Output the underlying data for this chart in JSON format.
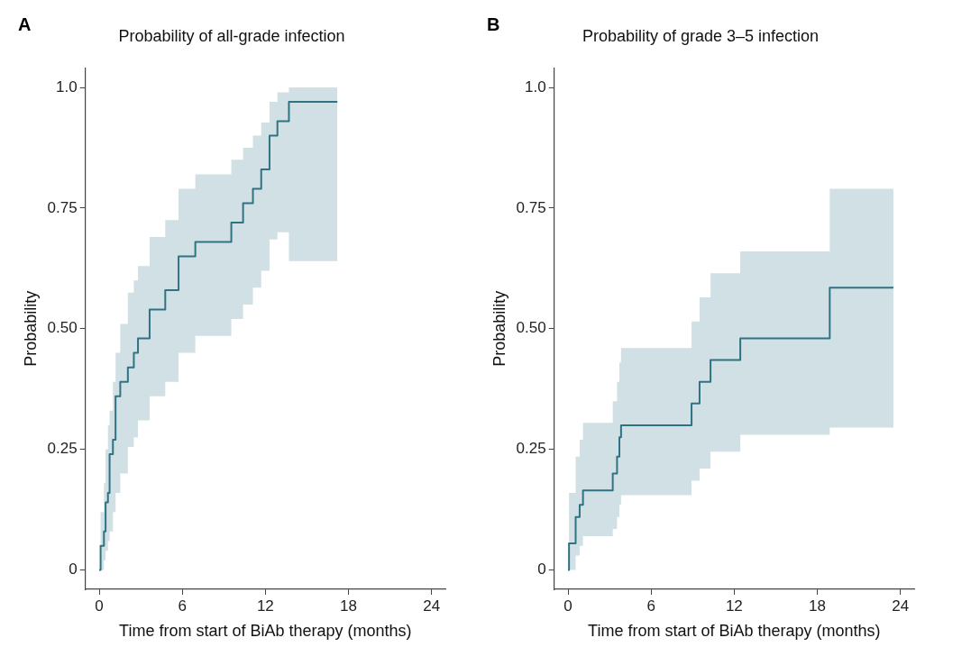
{
  "chart_data": [
    {
      "type": "step",
      "title": "Probability of all-grade infection",
      "xlabel": "Time from start of BiAb therapy (months)",
      "ylabel": "Probability",
      "annotations": [
        "A"
      ],
      "xlim": [
        -1,
        25
      ],
      "ylim": [
        -0.04,
        1.04
      ],
      "xticks": [
        0,
        6,
        12,
        18,
        24
      ],
      "yticks": [
        0,
        {
          "value": 0.25,
          "label": "0.25"
        },
        {
          "value": 0.5,
          "label": "0.50"
        },
        {
          "value": 0.75,
          "label": "0.75"
        },
        {
          "value": 1,
          "label": "1.0"
        }
      ],
      "legend": false,
      "series": [
        {
          "color": "#2f7383",
          "x": [
            0,
            0.1,
            0.34,
            0.46,
            0.63,
            0.75,
            0.99,
            1.18,
            1.52,
            2.07,
            2.5,
            2.8,
            3.64,
            4.77,
            5.73,
            6.94,
            9.54,
            10.39,
            11.1,
            11.7,
            12.3,
            12.87,
            13.7,
            17.2
          ],
          "values": [
            0,
            0.05,
            0.08,
            0.14,
            0.16,
            0.24,
            0.27,
            0.36,
            0.39,
            0.42,
            0.45,
            0.48,
            0.54,
            0.58,
            0.65,
            0.68,
            0.72,
            0.76,
            0.79,
            0.83,
            0.9,
            0.93,
            0.97,
            0.97
          ],
          "upper": [
            0,
            0.12,
            0.18,
            0.25,
            0.3,
            0.33,
            0.39,
            0.45,
            0.51,
            0.575,
            0.6,
            0.63,
            0.69,
            0.725,
            0.79,
            0.82,
            0.85,
            0.875,
            0.9,
            0.927,
            0.97,
            0.99,
            1,
            1
          ],
          "lower": [
            0,
            0,
            0.02,
            0.04,
            0.06,
            0.08,
            0.12,
            0.16,
            0.2,
            0.255,
            0.275,
            0.31,
            0.36,
            0.39,
            0.45,
            0.485,
            0.52,
            0.55,
            0.585,
            0.62,
            0.685,
            0.7,
            0.64,
            0.64
          ]
        }
      ]
    },
    {
      "type": "step",
      "title": "Probability of grade 3–5 infection",
      "xlabel": "Time from start of BiAb therapy (months)",
      "ylabel": "Probability",
      "annotations": [
        "B"
      ],
      "xlim": [
        -1,
        25
      ],
      "ylim": [
        -0.04,
        1.04
      ],
      "xticks": [
        0,
        6,
        12,
        18,
        24
      ],
      "yticks": [
        0,
        {
          "value": 0.25,
          "label": "0.25"
        },
        {
          "value": 0.5,
          "label": "0.50"
        },
        {
          "value": 0.75,
          "label": "0.75"
        },
        {
          "value": 1,
          "label": "1.0"
        }
      ],
      "legend": false,
      "series": [
        {
          "color": "#2f7383",
          "x": [
            0,
            0.07,
            0.55,
            0.84,
            1.08,
            3.23,
            3.54,
            3.71,
            3.83,
            8.92,
            9.5,
            10.29,
            12.44,
            18.9,
            23.5
          ],
          "values": [
            0,
            0.055,
            0.11,
            0.135,
            0.165,
            0.2,
            0.235,
            0.275,
            0.3,
            0.345,
            0.39,
            0.435,
            0.48,
            0.585,
            0.585
          ],
          "upper": [
            0,
            0.16,
            0.235,
            0.27,
            0.305,
            0.35,
            0.39,
            0.43,
            0.46,
            0.515,
            0.565,
            0.615,
            0.66,
            0.79,
            0.79
          ],
          "lower": [
            0,
            0,
            0.03,
            0.05,
            0.07,
            0.085,
            0.11,
            0.135,
            0.155,
            0.185,
            0.21,
            0.245,
            0.28,
            0.295,
            0.295
          ]
        }
      ]
    }
  ]
}
